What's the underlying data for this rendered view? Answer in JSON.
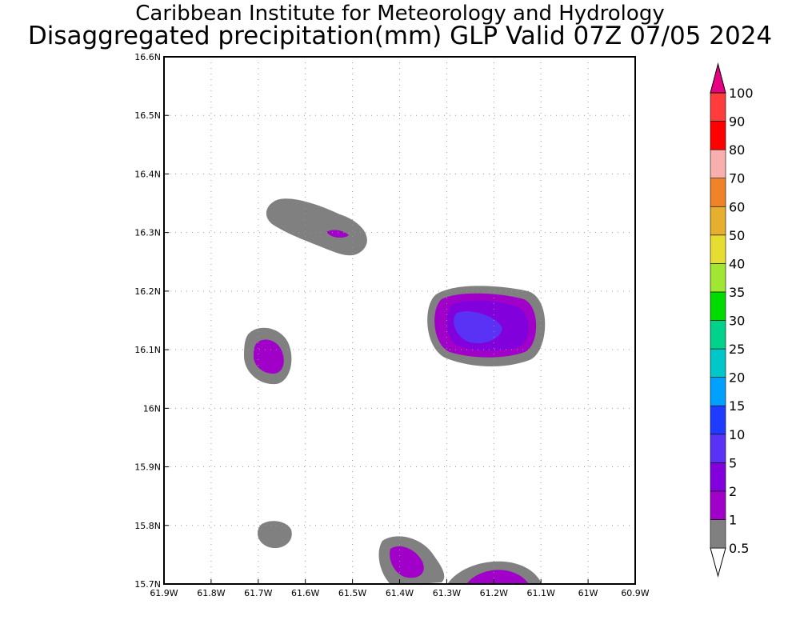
{
  "header": {
    "title_line1": "Caribbean Institute for Meteorology and Hydrology",
    "title_line2": "Disaggregated precipitation(mm) GLP Valid 07Z 07/05 2024"
  },
  "map": {
    "lon_range": [
      -61.9,
      -60.9
    ],
    "lat_range": [
      15.7,
      16.6
    ],
    "x_tick_labels": [
      "61.9W",
      "61.8W",
      "61.7W",
      "61.6W",
      "61.5W",
      "61.4W",
      "61.3W",
      "61.2W",
      "61.1W",
      "61W",
      "60.9W"
    ],
    "y_tick_labels": [
      "15.7N",
      "15.8N",
      "15.9N",
      "16N",
      "16.1N",
      "16.2N",
      "16.3N",
      "16.4N",
      "16.5N",
      "16.6N"
    ],
    "grid": "dotted"
  },
  "colorbar": {
    "labels": [
      "0.5",
      "1",
      "2",
      "5",
      "10",
      "15",
      "20",
      "25",
      "30",
      "35",
      "40",
      "50",
      "60",
      "70",
      "80",
      "90",
      "100"
    ],
    "colors": [
      "#808080",
      "#a000c8",
      "#8200dc",
      "#5a32f5",
      "#1e3cff",
      "#00a0ff",
      "#00c8c8",
      "#00d28c",
      "#00dc00",
      "#a0e632",
      "#e6dc32",
      "#e6af2d",
      "#f08228",
      "#faafaf",
      "#ff0000",
      "#ff3c3c",
      "#e60082"
    ]
  },
  "precip_cells": [
    {
      "lon": -61.575,
      "lat": 16.305,
      "levels": [
        "#808080",
        "#a000c8"
      ]
    },
    {
      "lon": -61.675,
      "lat": 16.09,
      "levels": [
        "#808080",
        "#a000c8"
      ]
    },
    {
      "lon": -61.215,
      "lat": 16.14,
      "levels": [
        "#808080",
        "#a000c8",
        "#8200dc",
        "#5a32f5"
      ]
    },
    {
      "lon": -61.665,
      "lat": 15.79,
      "levels": [
        "#808080"
      ]
    },
    {
      "lon": -61.385,
      "lat": 15.74,
      "levels": [
        "#808080",
        "#a000c8"
      ]
    },
    {
      "lon": -61.19,
      "lat": 15.7,
      "levels": [
        "#808080",
        "#a000c8"
      ]
    }
  ]
}
